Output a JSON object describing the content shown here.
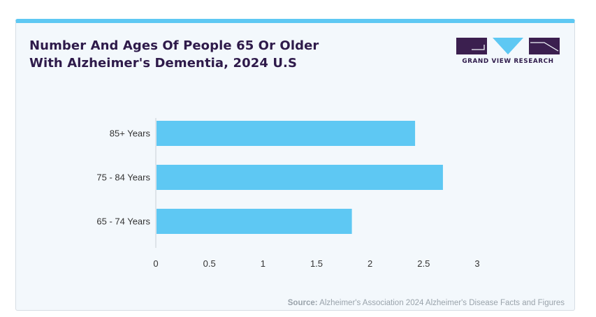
{
  "title_lines": [
    "Number And Ages Of People 65 Or Older",
    "With Alzheimer's Dementia, 2024 U.S"
  ],
  "brand": {
    "name": "GRAND VIEW RESEARCH",
    "logo_dark": "#3b1f4f",
    "logo_light": "#5ec8f3"
  },
  "source": {
    "label": "Source:",
    "text": "Alzheimer's Association 2024 Alzheimer's Disease Facts and Figures"
  },
  "colors": {
    "bar": "#5ec8f3",
    "axis": "#c9cfd6",
    "text": "#333333"
  },
  "chart_data": {
    "type": "bar",
    "orientation": "horizontal",
    "categories": [
      "85+ Years",
      "75 - 84 Years",
      "65 - 74 Years"
    ],
    "values": [
      2.42,
      2.68,
      1.83
    ],
    "xlim": [
      0,
      3
    ],
    "xticks": [
      "0",
      "0.5",
      "1",
      "1.5",
      "2",
      "2.5",
      "3"
    ],
    "grid": false
  }
}
